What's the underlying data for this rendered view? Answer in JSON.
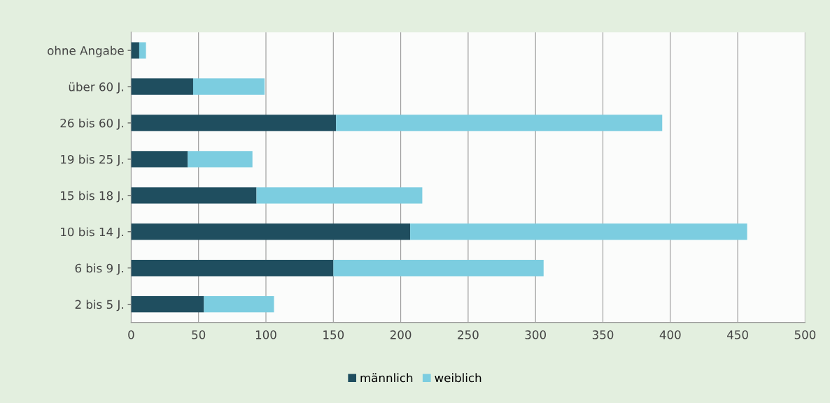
{
  "chart_data": {
    "type": "bar",
    "orientation": "horizontal",
    "stacked": true,
    "categories": [
      "ohne Angabe",
      "über 60 J.",
      "26 bis 60 J.",
      "19 bis 25 J.",
      "15 bis 18 J.",
      "10 bis 14 J.",
      "6 bis 9 J.",
      "2 bis 5 J."
    ],
    "series": [
      {
        "name": "männlich",
        "color": "#1f4e5f",
        "values": [
          6,
          46,
          152,
          42,
          93,
          207,
          150,
          54
        ]
      },
      {
        "name": "weiblich",
        "color": "#7ccde0",
        "values": [
          5,
          53,
          242,
          48,
          123,
          250,
          156,
          52
        ]
      }
    ],
    "xlim": [
      0,
      500
    ],
    "xticks": [
      0,
      50,
      100,
      150,
      200,
      250,
      300,
      350,
      400,
      450,
      500
    ],
    "grid": "x",
    "legend": "bottom"
  }
}
